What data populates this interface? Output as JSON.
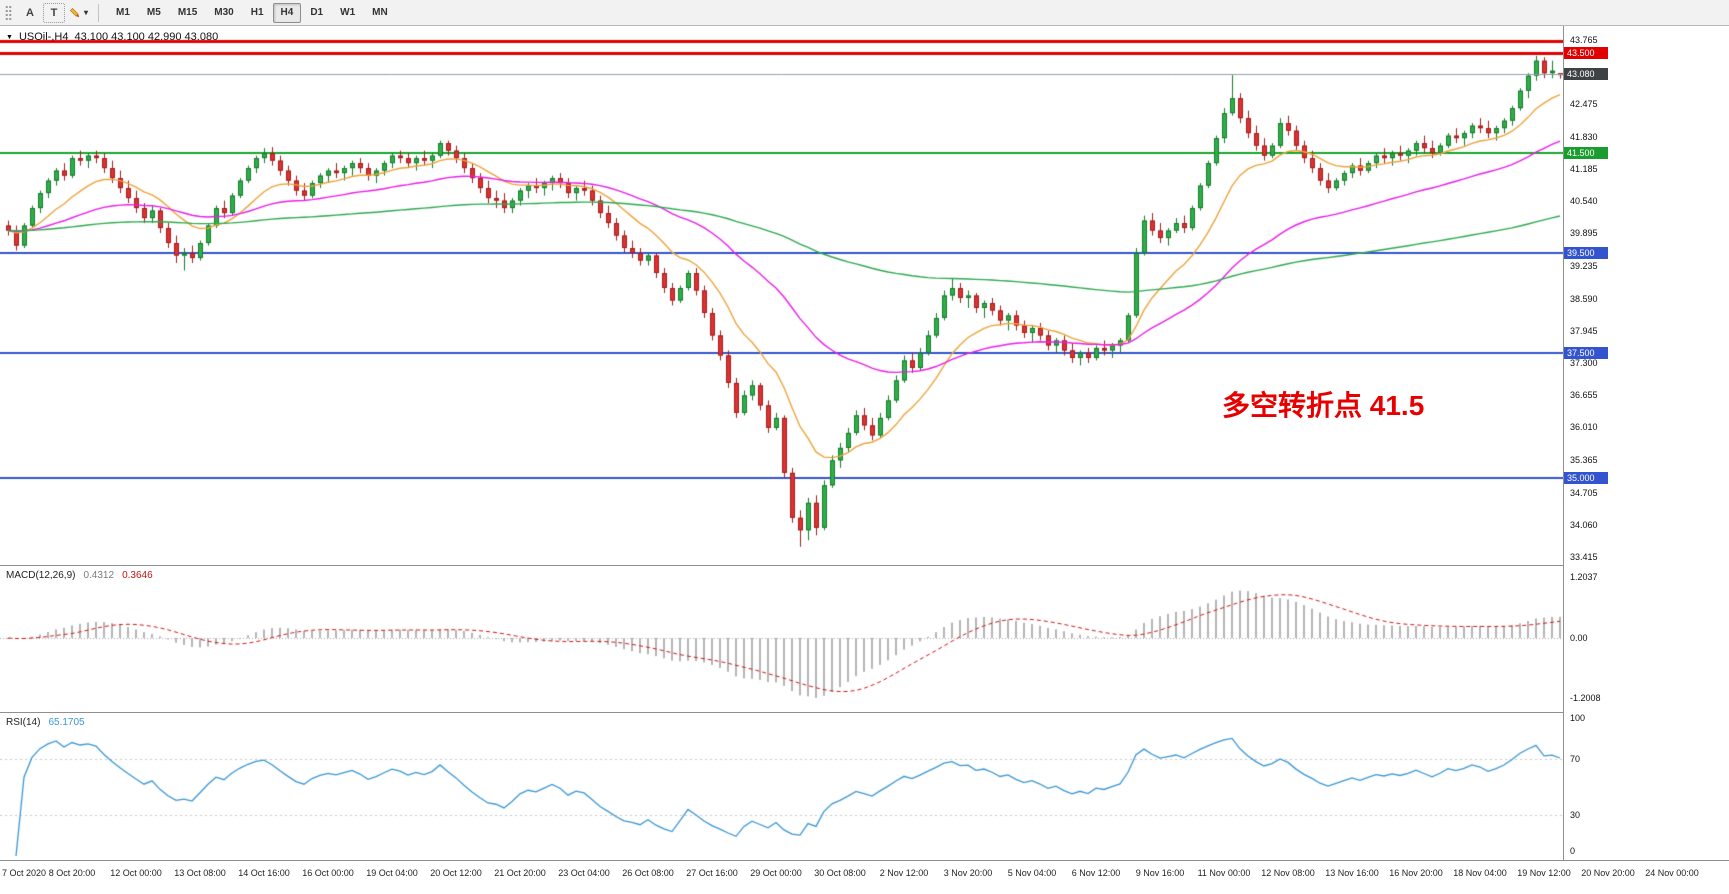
{
  "toolbar": {
    "tool_a": "A",
    "tool_t": "T",
    "timeframes": [
      "M1",
      "M5",
      "M15",
      "M30",
      "H1",
      "H4",
      "D1",
      "W1",
      "MN"
    ],
    "active_timeframe": "H4"
  },
  "chart": {
    "title": "USOil-,H4",
    "ohlc_text": "43.100 43.100 42.990 43.080",
    "annotation": {
      "text": "多空转折点 41.5",
      "color": "#e60000"
    },
    "current_price": 43.08,
    "price_axis": {
      "ticks": [
        "43.765",
        "42.475",
        "41.830",
        "41.185",
        "40.540",
        "39.895",
        "39.235",
        "38.590",
        "37.945",
        "37.300",
        "36.655",
        "36.010",
        "35.365",
        "34.705",
        "34.060",
        "33.415"
      ],
      "badges": [
        {
          "value": "43.500",
          "price": 43.5,
          "color": "#e00000"
        },
        {
          "value": "43.080",
          "price": 43.08,
          "color": "#3f4245"
        },
        {
          "value": "41.500",
          "price": 41.5,
          "color": "#1a9c2e"
        },
        {
          "value": "39.500",
          "price": 39.5,
          "color": "#3353cf"
        },
        {
          "value": "37.500",
          "price": 37.5,
          "color": "#3353cf"
        },
        {
          "value": "35.000",
          "price": 35.0,
          "color": "#3353cf"
        }
      ]
    },
    "hlines": [
      {
        "price": 43.75,
        "color": "#e00000",
        "width": 3
      },
      {
        "price": 43.5,
        "color": "#e00000",
        "width": 3
      },
      {
        "price": 41.5,
        "color": "#17a52b",
        "width": 2
      },
      {
        "price": 39.5,
        "color": "#3353cf",
        "width": 2
      },
      {
        "price": 37.5,
        "color": "#3353cf",
        "width": 2
      },
      {
        "price": 35.0,
        "color": "#3353cf",
        "width": 2
      }
    ]
  },
  "chart_data": {
    "type": "candlestick",
    "symbol": "USOil-",
    "timeframe": "H4",
    "ohlc_current": {
      "open": "43.100",
      "high": "43.100",
      "low": "42.990",
      "close": "43.080"
    },
    "ylim": [
      33.415,
      43.765
    ],
    "time_labels": [
      "7 Oct 2020",
      "8 Oct 20:00",
      "12 Oct 00:00",
      "13 Oct 08:00",
      "14 Oct 16:00",
      "16 Oct 00:00",
      "19 Oct 04:00",
      "20 Oct 12:00",
      "21 Oct 20:00",
      "23 Oct 04:00",
      "26 Oct 08:00",
      "27 Oct 16:00",
      "29 Oct 00:00",
      "30 Oct 08:00",
      "2 Nov 12:00",
      "3 Nov 20:00",
      "5 Nov 04:00",
      "6 Nov 12:00",
      "9 Nov 16:00",
      "11 Nov 00:00",
      "12 Nov 08:00",
      "13 Nov 16:00",
      "16 Nov 20:00",
      "18 Nov 04:00",
      "19 Nov 12:00",
      "20 Nov 20:00",
      "24 Nov 00:00"
    ],
    "candle_colors": {
      "up": "#2fae4a",
      "up_border": "#167a2c",
      "down": "#e03030",
      "down_border": "#9e1f1f"
    },
    "moving_averages": [
      {
        "name": "fast-ma",
        "period": 12,
        "color": "#eda33c"
      },
      {
        "name": "mid-ma",
        "period": 40,
        "color": "#e81ee8"
      },
      {
        "name": "slow-ma",
        "period": 150,
        "color": "#2fa84f"
      }
    ],
    "candles": [
      [
        40.05,
        40.15,
        39.85,
        39.95
      ],
      [
        39.95,
        40.05,
        39.55,
        39.65
      ],
      [
        39.65,
        40.1,
        39.6,
        40.05
      ],
      [
        40.05,
        40.45,
        40,
        40.4
      ],
      [
        40.4,
        40.75,
        40.3,
        40.7
      ],
      [
        40.7,
        41,
        40.6,
        40.95
      ],
      [
        40.95,
        41.2,
        40.85,
        41.15
      ],
      [
        41.15,
        41.3,
        40.95,
        41.05
      ],
      [
        41.05,
        41.45,
        41,
        41.4
      ],
      [
        41.4,
        41.55,
        41.25,
        41.35
      ],
      [
        41.35,
        41.5,
        41.2,
        41.45
      ],
      [
        41.45,
        41.55,
        41.3,
        41.4
      ],
      [
        41.4,
        41.5,
        41.1,
        41.2
      ],
      [
        41.2,
        41.35,
        40.9,
        41
      ],
      [
        41,
        41.15,
        40.7,
        40.8
      ],
      [
        40.8,
        40.95,
        40.5,
        40.6
      ],
      [
        40.6,
        40.75,
        40.3,
        40.4
      ],
      [
        40.4,
        40.5,
        40.1,
        40.2
      ],
      [
        40.2,
        40.45,
        40.1,
        40.35
      ],
      [
        40.35,
        40.4,
        39.9,
        40
      ],
      [
        40,
        40.1,
        39.6,
        39.7
      ],
      [
        39.7,
        39.85,
        39.3,
        39.45
      ],
      [
        39.45,
        39.6,
        39.15,
        39.5
      ],
      [
        39.5,
        39.65,
        39.3,
        39.4
      ],
      [
        39.4,
        39.75,
        39.35,
        39.7
      ],
      [
        39.7,
        40.1,
        39.65,
        40.05
      ],
      [
        40.05,
        40.45,
        40,
        40.4
      ],
      [
        40.4,
        40.55,
        40.2,
        40.3
      ],
      [
        40.3,
        40.7,
        40.25,
        40.65
      ],
      [
        40.65,
        41,
        40.6,
        40.95
      ],
      [
        40.95,
        41.25,
        40.9,
        41.2
      ],
      [
        41.2,
        41.45,
        41.1,
        41.4
      ],
      [
        41.4,
        41.6,
        41.3,
        41.5
      ],
      [
        41.5,
        41.62,
        41.25,
        41.35
      ],
      [
        41.35,
        41.45,
        41.05,
        41.15
      ],
      [
        41.15,
        41.25,
        40.85,
        40.95
      ],
      [
        40.95,
        41.05,
        40.65,
        40.75
      ],
      [
        40.75,
        40.9,
        40.55,
        40.65
      ],
      [
        40.65,
        40.95,
        40.6,
        40.9
      ],
      [
        40.9,
        41.1,
        40.8,
        41.05
      ],
      [
        41.05,
        41.2,
        40.9,
        41.15
      ],
      [
        41.15,
        41.3,
        41,
        41.1
      ],
      [
        41.1,
        41.25,
        40.95,
        41.2
      ],
      [
        41.2,
        41.35,
        41.05,
        41.3
      ],
      [
        41.3,
        41.4,
        41.1,
        41.2
      ],
      [
        41.2,
        41.3,
        40.95,
        41.05
      ],
      [
        41.05,
        41.2,
        40.9,
        41.15
      ],
      [
        41.15,
        41.35,
        41.05,
        41.3
      ],
      [
        41.3,
        41.5,
        41.2,
        41.45
      ],
      [
        41.45,
        41.55,
        41.3,
        41.4
      ],
      [
        41.4,
        41.5,
        41.2,
        41.3
      ],
      [
        41.3,
        41.45,
        41.15,
        41.4
      ],
      [
        41.4,
        41.55,
        41.25,
        41.35
      ],
      [
        41.35,
        41.5,
        41.2,
        41.45
      ],
      [
        41.45,
        41.75,
        41.4,
        41.7
      ],
      [
        41.7,
        41.75,
        41.45,
        41.55
      ],
      [
        41.55,
        41.65,
        41.3,
        41.4
      ],
      [
        41.4,
        41.5,
        41.1,
        41.2
      ],
      [
        41.2,
        41.3,
        40.9,
        41
      ],
      [
        41,
        41.1,
        40.7,
        40.8
      ],
      [
        40.8,
        40.95,
        40.5,
        40.6
      ],
      [
        40.6,
        40.75,
        40.4,
        40.55
      ],
      [
        40.55,
        40.7,
        40.3,
        40.4
      ],
      [
        40.4,
        40.6,
        40.3,
        40.55
      ],
      [
        40.55,
        40.8,
        40.45,
        40.75
      ],
      [
        40.75,
        40.9,
        40.6,
        40.85
      ],
      [
        40.85,
        41,
        40.7,
        40.8
      ],
      [
        40.8,
        40.95,
        40.65,
        40.9
      ],
      [
        40.9,
        41.05,
        40.75,
        41
      ],
      [
        41,
        41.1,
        40.8,
        40.9
      ],
      [
        40.9,
        41,
        40.6,
        40.7
      ],
      [
        40.7,
        40.85,
        40.55,
        40.8
      ],
      [
        40.8,
        40.95,
        40.65,
        40.75
      ],
      [
        40.75,
        40.85,
        40.45,
        40.55
      ],
      [
        40.55,
        40.65,
        40.2,
        40.3
      ],
      [
        40.3,
        40.45,
        40,
        40.1
      ],
      [
        40.1,
        40.2,
        39.75,
        39.85
      ],
      [
        39.85,
        39.95,
        39.5,
        39.6
      ],
      [
        39.6,
        39.75,
        39.4,
        39.5
      ],
      [
        39.5,
        39.6,
        39.25,
        39.35
      ],
      [
        39.35,
        39.5,
        39.25,
        39.45
      ],
      [
        39.45,
        39.5,
        39,
        39.1
      ],
      [
        39.1,
        39.2,
        38.7,
        38.8
      ],
      [
        38.8,
        38.9,
        38.45,
        38.55
      ],
      [
        38.55,
        38.85,
        38.5,
        38.8
      ],
      [
        38.8,
        39.15,
        38.75,
        39.1
      ],
      [
        39.1,
        39.2,
        38.65,
        38.75
      ],
      [
        38.75,
        38.85,
        38.2,
        38.3
      ],
      [
        38.3,
        38.4,
        37.75,
        37.85
      ],
      [
        37.85,
        37.95,
        37.35,
        37.45
      ],
      [
        37.45,
        37.55,
        36.8,
        36.9
      ],
      [
        36.9,
        37,
        36.2,
        36.3
      ],
      [
        36.3,
        36.75,
        36.25,
        36.65
      ],
      [
        36.65,
        36.95,
        36.55,
        36.85
      ],
      [
        36.85,
        36.9,
        36.35,
        36.45
      ],
      [
        36.45,
        36.55,
        35.9,
        36
      ],
      [
        36,
        36.3,
        35.95,
        36.2
      ],
      [
        36.2,
        36.25,
        35,
        35.1
      ],
      [
        35.1,
        35.2,
        34.1,
        34.2
      ],
      [
        34.2,
        34.35,
        33.62,
        33.95
      ],
      [
        33.95,
        34.6,
        33.75,
        34.5
      ],
      [
        34.5,
        34.65,
        33.85,
        34
      ],
      [
        34,
        34.95,
        33.95,
        34.85
      ],
      [
        34.85,
        35.45,
        34.8,
        35.35
      ],
      [
        35.35,
        35.7,
        35.2,
        35.6
      ],
      [
        35.6,
        36,
        35.5,
        35.9
      ],
      [
        35.9,
        36.35,
        35.85,
        36.25
      ],
      [
        36.25,
        36.4,
        35.95,
        36.05
      ],
      [
        36.05,
        36.2,
        35.75,
        35.85
      ],
      [
        35.85,
        36.3,
        35.8,
        36.2
      ],
      [
        36.2,
        36.65,
        36.15,
        36.55
      ],
      [
        36.55,
        37.05,
        36.5,
        36.95
      ],
      [
        36.95,
        37.45,
        36.9,
        37.35
      ],
      [
        37.35,
        37.5,
        37.1,
        37.2
      ],
      [
        37.2,
        37.6,
        37.15,
        37.5
      ],
      [
        37.5,
        37.95,
        37.45,
        37.85
      ],
      [
        37.85,
        38.3,
        37.8,
        38.2
      ],
      [
        38.2,
        38.75,
        38.15,
        38.65
      ],
      [
        38.65,
        39,
        38.55,
        38.8
      ],
      [
        38.8,
        38.9,
        38.5,
        38.6
      ],
      [
        38.6,
        38.75,
        38.4,
        38.65
      ],
      [
        38.65,
        38.7,
        38.3,
        38.4
      ],
      [
        38.4,
        38.55,
        38.2,
        38.5
      ],
      [
        38.5,
        38.6,
        38.25,
        38.35
      ],
      [
        38.35,
        38.45,
        38.05,
        38.15
      ],
      [
        38.15,
        38.3,
        37.95,
        38.25
      ],
      [
        38.25,
        38.35,
        37.95,
        38.05
      ],
      [
        38.05,
        38.15,
        37.8,
        37.9
      ],
      [
        37.9,
        38.05,
        37.7,
        38
      ],
      [
        38,
        38.1,
        37.75,
        37.85
      ],
      [
        37.85,
        37.95,
        37.55,
        37.65
      ],
      [
        37.65,
        37.8,
        37.5,
        37.75
      ],
      [
        37.75,
        37.85,
        37.45,
        37.55
      ],
      [
        37.55,
        37.7,
        37.3,
        37.4
      ],
      [
        37.4,
        37.55,
        37.25,
        37.5
      ],
      [
        37.5,
        37.6,
        37.3,
        37.4
      ],
      [
        37.4,
        37.65,
        37.35,
        37.6
      ],
      [
        37.6,
        37.75,
        37.45,
        37.55
      ],
      [
        37.55,
        37.7,
        37.4,
        37.65
      ],
      [
        37.65,
        37.8,
        37.5,
        37.75
      ],
      [
        37.75,
        38.3,
        37.7,
        38.25
      ],
      [
        38.25,
        39.6,
        38.2,
        39.5
      ],
      [
        39.5,
        40.25,
        39.45,
        40.15
      ],
      [
        40.15,
        40.3,
        39.85,
        39.95
      ],
      [
        39.95,
        40.1,
        39.7,
        39.8
      ],
      [
        39.8,
        40,
        39.65,
        39.95
      ],
      [
        39.95,
        40.2,
        39.9,
        40.1
      ],
      [
        40.1,
        40.25,
        39.9,
        40
      ],
      [
        40,
        40.45,
        39.95,
        40.4
      ],
      [
        40.4,
        40.9,
        40.35,
        40.85
      ],
      [
        40.85,
        41.35,
        40.8,
        41.3
      ],
      [
        41.3,
        41.85,
        41.25,
        41.8
      ],
      [
        41.8,
        42.4,
        41.7,
        42.3
      ],
      [
        42.3,
        43.06,
        42.25,
        42.6
      ],
      [
        42.6,
        42.7,
        42.1,
        42.2
      ],
      [
        42.2,
        42.35,
        41.8,
        41.9
      ],
      [
        41.9,
        42.05,
        41.55,
        41.65
      ],
      [
        41.65,
        41.8,
        41.35,
        41.45
      ],
      [
        41.45,
        41.7,
        41.4,
        41.65
      ],
      [
        41.65,
        42.2,
        41.6,
        42.1
      ],
      [
        42.1,
        42.25,
        41.85,
        41.95
      ],
      [
        41.95,
        42.05,
        41.55,
        41.65
      ],
      [
        41.65,
        41.75,
        41.3,
        41.4
      ],
      [
        41.4,
        41.55,
        41.1,
        41.2
      ],
      [
        41.2,
        41.3,
        40.85,
        40.95
      ],
      [
        40.95,
        41.1,
        40.7,
        40.8
      ],
      [
        40.8,
        41,
        40.75,
        40.95
      ],
      [
        40.95,
        41.15,
        40.85,
        41.1
      ],
      [
        41.1,
        41.3,
        41,
        41.25
      ],
      [
        41.25,
        41.4,
        41.05,
        41.15
      ],
      [
        41.15,
        41.35,
        41.1,
        41.3
      ],
      [
        41.3,
        41.5,
        41.2,
        41.45
      ],
      [
        41.45,
        41.6,
        41.3,
        41.4
      ],
      [
        41.4,
        41.55,
        41.25,
        41.5
      ],
      [
        41.5,
        41.65,
        41.35,
        41.45
      ],
      [
        41.45,
        41.6,
        41.3,
        41.55
      ],
      [
        41.55,
        41.75,
        41.45,
        41.7
      ],
      [
        41.7,
        41.85,
        41.5,
        41.6
      ],
      [
        41.6,
        41.75,
        41.4,
        41.5
      ],
      [
        41.5,
        41.7,
        41.45,
        41.65
      ],
      [
        41.65,
        41.9,
        41.6,
        41.85
      ],
      [
        41.85,
        42,
        41.7,
        41.8
      ],
      [
        41.8,
        41.95,
        41.65,
        41.9
      ],
      [
        41.9,
        42.1,
        41.8,
        42.05
      ],
      [
        42.05,
        42.2,
        41.9,
        42
      ],
      [
        42,
        42.15,
        41.8,
        41.9
      ],
      [
        41.9,
        42.05,
        41.75,
        42
      ],
      [
        42,
        42.2,
        41.9,
        42.15
      ],
      [
        42.15,
        42.45,
        42.05,
        42.4
      ],
      [
        42.4,
        42.8,
        42.35,
        42.75
      ],
      [
        42.75,
        43.1,
        42.6,
        43.05
      ],
      [
        43.05,
        43.45,
        42.95,
        43.35
      ],
      [
        43.35,
        43.42,
        43,
        43.1
      ],
      [
        43.1,
        43.35,
        43,
        43.15
      ],
      [
        43.1,
        43.1,
        42.99,
        43.08
      ]
    ]
  },
  "macd": {
    "label": "MACD(12,26,9)",
    "value": "0.4312",
    "signal_value": "0.3646",
    "scale_top": "1.2037",
    "scale_mid": "0.00",
    "scale_bottom": "-1.2008",
    "fast": 12,
    "slow": 26,
    "signal": 9,
    "histogram_color": "#b5b5b5",
    "signal_color": "#d01616"
  },
  "rsi": {
    "label": "RSI(14)",
    "value": "65.1705",
    "period": 14,
    "line_color": "#3a96d4",
    "levels": [
      "100",
      "70",
      "30",
      "0"
    ],
    "level_lines": [
      70,
      30
    ]
  }
}
